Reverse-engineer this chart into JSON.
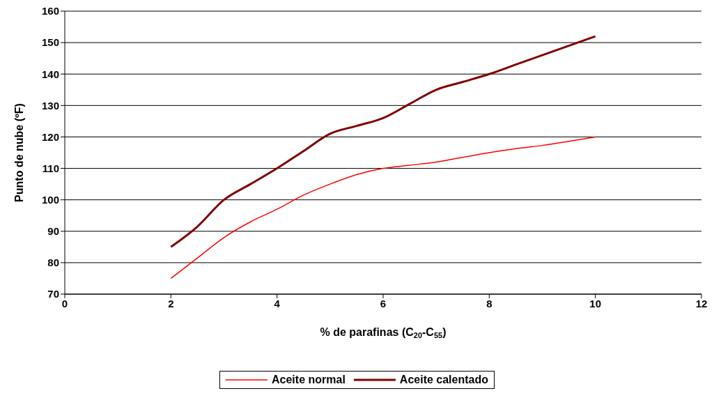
{
  "chart_data": {
    "type": "line",
    "xlabel": "% de parafinas (C$_{20}$-C$_{55}$)",
    "ylabel": "Punto de nube (ºF)",
    "xlim": [
      0,
      12
    ],
    "xticks": [
      0,
      2,
      4,
      6,
      8,
      10,
      12
    ],
    "ylim": [
      70,
      160
    ],
    "yticks": [
      70,
      80,
      90,
      100,
      110,
      120,
      130,
      140,
      150,
      160
    ],
    "grid": "y",
    "legend": "bottom",
    "marker": "none",
    "line_style": "solid",
    "x": [
      2,
      2.5,
      3,
      3.5,
      4,
      4.5,
      5,
      5.5,
      6,
      6.5,
      7,
      7.5,
      8,
      8.5,
      9,
      9.5,
      10
    ],
    "series": [
      {
        "name": "Aceite normal",
        "color": "#ff0000",
        "values": [
          75,
          81.5,
          88,
          93,
          97,
          101.5,
          105,
          108,
          110,
          111,
          112,
          113.5,
          115,
          116.3,
          117.3,
          118.6,
          120
        ]
      },
      {
        "name": "Aceite calentado",
        "color": "#800000",
        "values": [
          85,
          91.5,
          100,
          105,
          110,
          115.5,
          121,
          123.5,
          126,
          130.5,
          135,
          137.5,
          140,
          143,
          146,
          149,
          152
        ]
      }
    ]
  }
}
